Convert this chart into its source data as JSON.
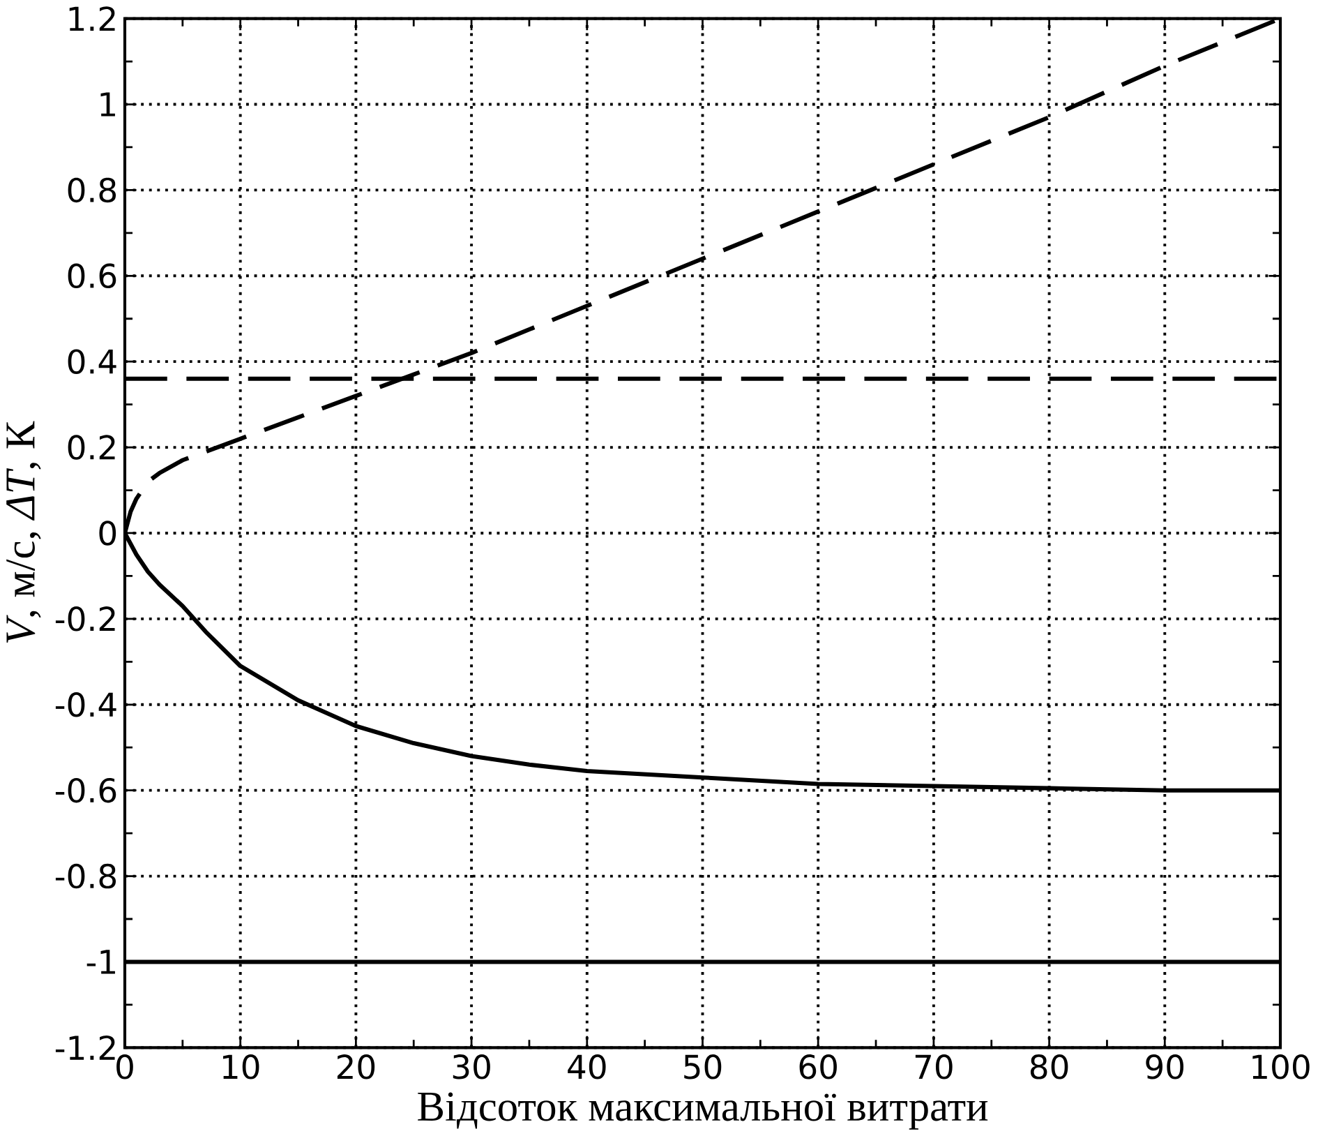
{
  "chart_data": {
    "type": "line",
    "xlabel": "Відсоток максимальної витрати",
    "ylabel": "*V*, м/с, *ΔT*, К",
    "xlim": [
      0,
      100
    ],
    "ylim": [
      -1.2,
      1.2
    ],
    "xticks": [
      0,
      10,
      20,
      30,
      40,
      50,
      60,
      70,
      80,
      90,
      100
    ],
    "yticks": [
      -1.2,
      -1,
      -0.8,
      -0.6,
      -0.4,
      -0.2,
      0,
      0.2,
      0.4,
      0.6,
      0.8,
      1,
      1.2
    ],
    "grid": true,
    "series": [
      {
        "color": "#000000",
        "line_style": "dashed",
        "x": [
          0,
          0.5,
          1,
          2,
          3,
          5,
          7,
          10,
          15,
          20,
          25,
          30,
          40,
          50,
          60,
          70,
          80,
          90,
          100
        ],
        "values": [
          0,
          0.05,
          0.08,
          0.12,
          0.14,
          0.17,
          0.19,
          0.22,
          0.27,
          0.32,
          0.37,
          0.42,
          0.53,
          0.64,
          0.75,
          0.86,
          0.97,
          1.09,
          1.2
        ]
      },
      {
        "color": "#000000",
        "line_style": "solid",
        "x": [
          0,
          1,
          2,
          3,
          5,
          7,
          10,
          15,
          20,
          25,
          30,
          35,
          40,
          50,
          60,
          70,
          80,
          90,
          100
        ],
        "values": [
          0,
          -0.05,
          -0.09,
          -0.12,
          -0.17,
          -0.23,
          -0.31,
          -0.39,
          -0.45,
          -0.49,
          -0.52,
          -0.54,
          -0.555,
          -0.57,
          -0.585,
          -0.59,
          -0.595,
          -0.6,
          -0.6
        ]
      }
    ],
    "ref_lines": [
      {
        "axis": "y",
        "value": 0.36,
        "color": "#000000",
        "line_style": "dashed"
      },
      {
        "axis": "y",
        "value": -1,
        "color": "#000000",
        "line_style": "solid"
      }
    ]
  }
}
